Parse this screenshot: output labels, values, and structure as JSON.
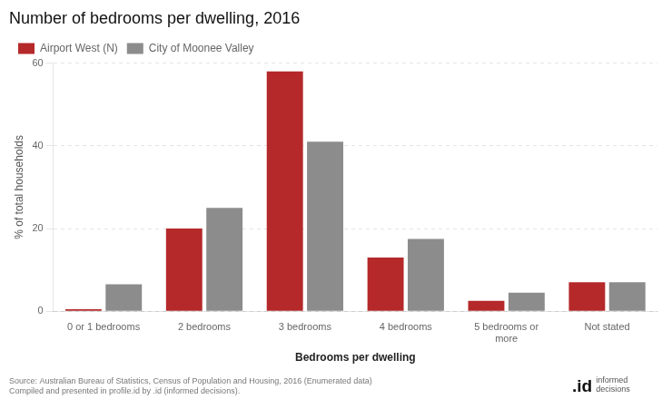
{
  "chart_data": {
    "type": "bar",
    "title": "Number of bedrooms per dwelling, 2016",
    "categories": [
      "0 or 1 bedrooms",
      "2 bedrooms",
      "3 bedrooms",
      "4 bedrooms",
      "5 bedrooms or\nmore",
      "Not stated"
    ],
    "series": [
      {
        "name": "Airport West (N)",
        "color": "#b5292a",
        "values": [
          0.5,
          20.0,
          58.0,
          13.0,
          2.5,
          7.0
        ]
      },
      {
        "name": "City of Moonee Valley",
        "color": "#8c8c8c",
        "values": [
          6.5,
          25.0,
          41.0,
          17.5,
          4.5,
          7.0
        ]
      }
    ],
    "ylabel": "% of total households",
    "xlabel": "Bedrooms per dwelling",
    "ylim": [
      0,
      60
    ],
    "yticks": [
      0,
      20,
      40,
      60
    ],
    "grid": true,
    "legend": "upper left",
    "annotations": [
      "Source: Australian Bureau of Statistics, Census of Population and Housing, 2016 (Enumerated data)\nCompiled and presented in profile.id by .id (informed decisions).",
      ".id",
      "informed\ndecisions"
    ]
  }
}
